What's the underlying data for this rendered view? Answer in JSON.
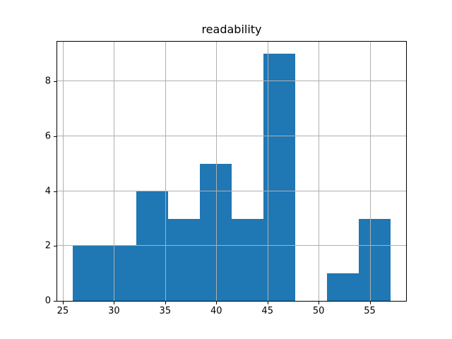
{
  "chart_data": {
    "type": "bar",
    "subtype": "histogram",
    "title": "readability",
    "bin_edges": [
      26.0,
      29.1,
      32.2,
      35.3,
      38.4,
      41.5,
      44.6,
      47.7,
      50.8,
      53.9,
      57.0
    ],
    "counts": [
      2,
      2,
      4,
      3,
      5,
      3,
      9,
      0,
      1,
      3
    ],
    "xticks": [
      25,
      30,
      35,
      40,
      45,
      50,
      55
    ],
    "yticks": [
      0,
      2,
      4,
      6,
      8
    ],
    "xlim": [
      24.45,
      58.55
    ],
    "ylim": [
      0,
      9.45
    ],
    "xlabel": "",
    "ylabel": "",
    "bar_color": "#1f77b4",
    "grid": true,
    "grid_color": "#b0b0b0",
    "grid_position": "above-bars",
    "background": "#ffffff",
    "spine_color": "#000000",
    "legend": null
  }
}
